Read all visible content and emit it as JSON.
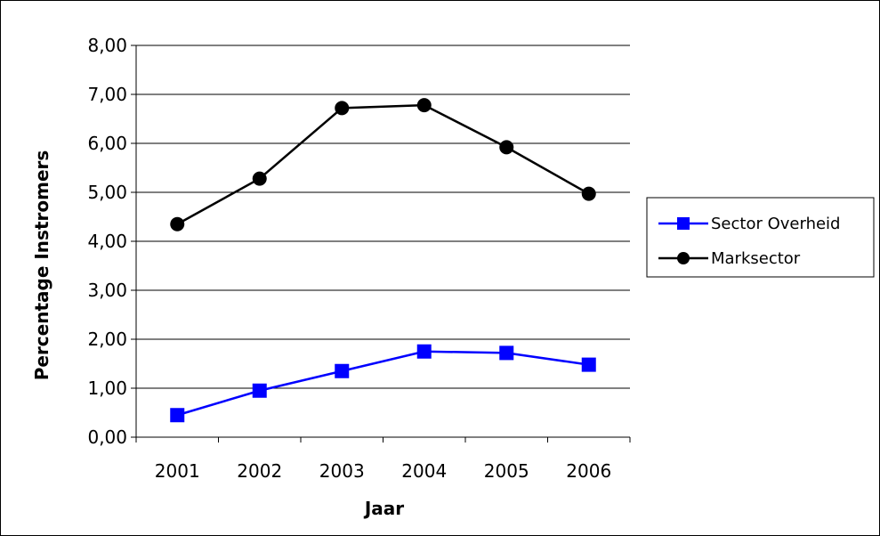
{
  "chart_data": {
    "type": "line",
    "title": "",
    "xlabel": "Jaar",
    "ylabel": "Percentage Instromers",
    "categories": [
      "2001",
      "2002",
      "2003",
      "2004",
      "2005",
      "2006"
    ],
    "ylim": [
      0,
      8
    ],
    "yticks": [
      "0,00",
      "1,00",
      "2,00",
      "3,00",
      "4,00",
      "5,00",
      "6,00",
      "7,00",
      "8,00"
    ],
    "grid": true,
    "legend_position": "right",
    "series": [
      {
        "name": "Sector Overheid",
        "marker": "square",
        "color": "#0000ff",
        "values": [
          0.45,
          0.95,
          1.35,
          1.75,
          1.72,
          1.48
        ]
      },
      {
        "name": "Marksector",
        "marker": "circle",
        "color": "#000000",
        "values": [
          4.35,
          5.28,
          6.72,
          6.78,
          5.92,
          4.97
        ]
      }
    ]
  }
}
